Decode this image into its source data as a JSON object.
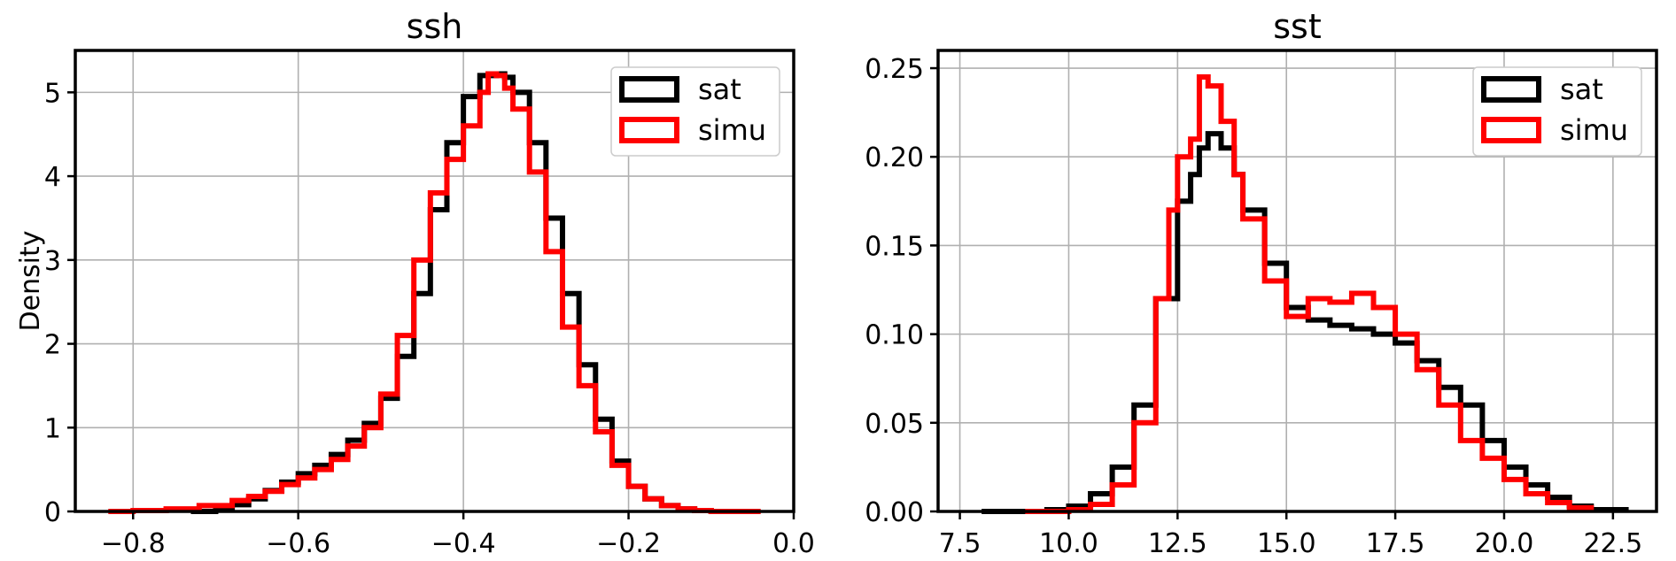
{
  "chart_data": [
    {
      "type": "line",
      "style": "step-histogram",
      "title": "ssh",
      "xlabel": "",
      "ylabel": "Density",
      "xlim": [
        -0.87,
        0.0
      ],
      "ylim": [
        0,
        5.5
      ],
      "xticks": [
        -0.8,
        -0.6,
        -0.4,
        -0.2,
        0.0
      ],
      "xtick_labels": [
        "−0.8",
        "−0.6",
        "−0.4",
        "−0.2",
        "0.0"
      ],
      "yticks": [
        0,
        1,
        2,
        3,
        4,
        5
      ],
      "ytick_labels": [
        "0",
        "1",
        "2",
        "3",
        "4",
        "5"
      ],
      "grid": true,
      "legend": "top-right",
      "series": [
        {
          "name": "sat",
          "color": "#000000",
          "x": [
            -0.73,
            -0.7,
            -0.68,
            -0.66,
            -0.64,
            -0.62,
            -0.6,
            -0.58,
            -0.56,
            -0.54,
            -0.52,
            -0.5,
            -0.48,
            -0.46,
            -0.44,
            -0.42,
            -0.4,
            -0.38,
            -0.36,
            -0.35,
            -0.34,
            -0.32,
            -0.3,
            -0.28,
            -0.26,
            -0.24,
            -0.22,
            -0.2,
            -0.18,
            -0.16,
            -0.14,
            -0.12,
            -0.1,
            -0.08
          ],
          "y": [
            0.0,
            0.03,
            0.08,
            0.15,
            0.25,
            0.35,
            0.45,
            0.55,
            0.68,
            0.85,
            1.05,
            1.35,
            1.85,
            2.6,
            3.6,
            4.4,
            4.95,
            5.2,
            5.22,
            5.18,
            5.0,
            4.4,
            3.5,
            2.6,
            1.75,
            1.1,
            0.6,
            0.3,
            0.15,
            0.07,
            0.03,
            0.01,
            0.0,
            0.0
          ]
        },
        {
          "name": "simu",
          "color": "#ff0000",
          "x": [
            -0.83,
            -0.8,
            -0.76,
            -0.72,
            -0.68,
            -0.66,
            -0.64,
            -0.62,
            -0.6,
            -0.58,
            -0.56,
            -0.54,
            -0.52,
            -0.5,
            -0.48,
            -0.46,
            -0.44,
            -0.42,
            -0.4,
            -0.38,
            -0.37,
            -0.36,
            -0.35,
            -0.34,
            -0.32,
            -0.3,
            -0.28,
            -0.26,
            -0.24,
            -0.22,
            -0.2,
            -0.18,
            -0.16,
            -0.14,
            -0.12,
            -0.1,
            -0.08,
            -0.04
          ],
          "y": [
            0.0,
            0.01,
            0.03,
            0.07,
            0.13,
            0.18,
            0.24,
            0.32,
            0.4,
            0.5,
            0.62,
            0.78,
            1.0,
            1.4,
            2.1,
            3.0,
            3.8,
            4.2,
            4.6,
            5.0,
            5.22,
            5.2,
            5.05,
            4.8,
            4.05,
            3.1,
            2.2,
            1.5,
            0.95,
            0.55,
            0.3,
            0.15,
            0.07,
            0.03,
            0.01,
            0.0,
            0.0,
            0.0
          ]
        }
      ]
    },
    {
      "type": "line",
      "style": "step-histogram",
      "title": "sst",
      "xlabel": "",
      "ylabel": "",
      "xlim": [
        7.0,
        23.5
      ],
      "ylim": [
        0,
        0.26
      ],
      "xticks": [
        7.5,
        10.0,
        12.5,
        15.0,
        17.5,
        20.0,
        22.5
      ],
      "xtick_labels": [
        "7.5",
        "10.0",
        "12.5",
        "15.0",
        "17.5",
        "20.0",
        "22.5"
      ],
      "yticks": [
        0.0,
        0.05,
        0.1,
        0.15,
        0.2,
        0.25
      ],
      "ytick_labels": [
        "0.00",
        "0.05",
        "0.10",
        "0.15",
        "0.20",
        "0.25"
      ],
      "grid": true,
      "legend": "top-right",
      "series": [
        {
          "name": "sat",
          "color": "#000000",
          "x": [
            8.0,
            9.0,
            9.5,
            10.0,
            10.5,
            11.0,
            11.5,
            12.0,
            12.5,
            12.8,
            13.0,
            13.2,
            13.5,
            13.8,
            14.0,
            14.5,
            15.0,
            15.5,
            16.0,
            16.5,
            17.0,
            17.5,
            18.0,
            18.5,
            19.0,
            19.5,
            20.0,
            20.5,
            21.0,
            21.5,
            22.0,
            22.8
          ],
          "y": [
            0.0,
            0.0,
            0.001,
            0.003,
            0.01,
            0.025,
            0.06,
            0.12,
            0.175,
            0.19,
            0.205,
            0.213,
            0.205,
            0.19,
            0.17,
            0.14,
            0.115,
            0.108,
            0.105,
            0.103,
            0.1,
            0.095,
            0.085,
            0.07,
            0.06,
            0.04,
            0.025,
            0.015,
            0.008,
            0.003,
            0.001,
            0.0
          ]
        },
        {
          "name": "simu",
          "color": "#ff0000",
          "x": [
            9.0,
            10.0,
            10.5,
            11.0,
            11.5,
            12.0,
            12.3,
            12.5,
            12.8,
            13.0,
            13.2,
            13.5,
            13.8,
            14.0,
            14.5,
            15.0,
            15.5,
            16.0,
            16.5,
            17.0,
            17.5,
            18.0,
            18.5,
            19.0,
            19.5,
            20.0,
            20.5,
            21.0,
            21.5,
            22.0
          ],
          "y": [
            0.0,
            0.001,
            0.004,
            0.015,
            0.05,
            0.12,
            0.17,
            0.2,
            0.21,
            0.245,
            0.24,
            0.22,
            0.19,
            0.165,
            0.13,
            0.11,
            0.12,
            0.118,
            0.123,
            0.115,
            0.1,
            0.08,
            0.06,
            0.04,
            0.03,
            0.018,
            0.01,
            0.005,
            0.002,
            0.0
          ]
        }
      ]
    }
  ]
}
